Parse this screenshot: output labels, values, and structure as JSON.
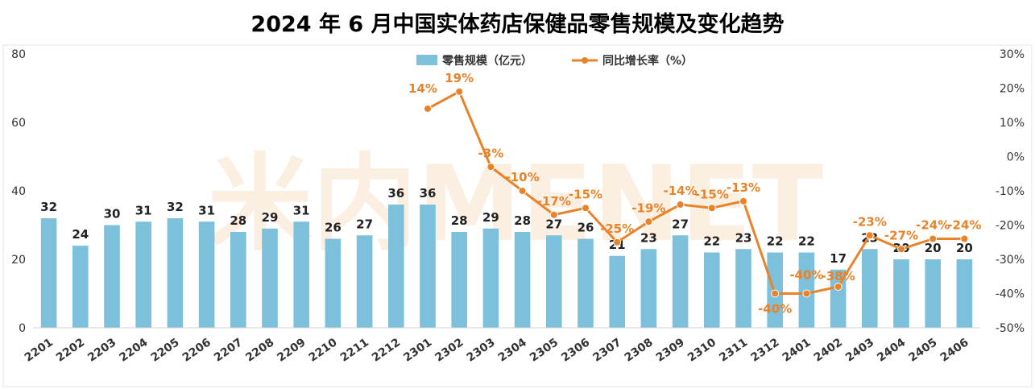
{
  "title": "2024 年 6 月中国实体药店保健品零售规模及变化趋势",
  "watermark": "米内MENET",
  "colors": {
    "bar": "#7cc0dc",
    "line": "#e8832a",
    "watermark": "#f8e2cc",
    "watermark2": "#e2eef3"
  },
  "chart_data": {
    "type": "bar+line",
    "categories": [
      "2201",
      "2202",
      "2203",
      "2204",
      "2205",
      "2206",
      "2207",
      "2208",
      "2209",
      "2210",
      "2211",
      "2212",
      "2301",
      "2302",
      "2303",
      "2304",
      "2305",
      "2306",
      "2307",
      "2308",
      "2309",
      "2310",
      "2311",
      "2312",
      "2401",
      "2402",
      "2403",
      "2404",
      "2405",
      "2406"
    ],
    "series": [
      {
        "name": "零售规模（亿元）",
        "type": "bar",
        "axis": "left",
        "values": [
          32,
          24,
          30,
          31,
          32,
          31,
          28,
          29,
          31,
          26,
          27,
          36,
          36,
          28,
          29,
          28,
          27,
          26,
          21,
          23,
          27,
          22,
          23,
          22,
          22,
          17,
          23,
          20,
          20,
          20
        ]
      },
      {
        "name": "同比增长率（%）",
        "type": "line",
        "axis": "right",
        "values": [
          null,
          null,
          null,
          null,
          null,
          null,
          null,
          null,
          null,
          null,
          null,
          null,
          14,
          19,
          -3,
          -10,
          -17,
          -15,
          -25,
          -19,
          -14,
          -15,
          -13,
          -40,
          -40,
          -38,
          -23,
          -27,
          -24,
          -24
        ],
        "labels": [
          null,
          null,
          null,
          null,
          null,
          null,
          null,
          null,
          null,
          null,
          null,
          null,
          "14%",
          "19%",
          "-3%",
          "-10%",
          "-17%",
          "-15%",
          "-25%",
          "-19%",
          "-14%",
          "-15%",
          "-13%",
          "-40%",
          "-40%",
          "-38%",
          "-23%",
          "-27%",
          "-24%",
          "-24%"
        ]
      }
    ],
    "y_left": {
      "min": 0,
      "max": 80,
      "ticks": [
        0,
        20,
        40,
        60,
        80
      ],
      "tick_labels": [
        "0",
        "20",
        "40",
        "60",
        "80"
      ]
    },
    "y_right": {
      "min": -50,
      "max": 30,
      "ticks": [
        -50,
        -40,
        -30,
        -20,
        -10,
        0,
        10,
        20,
        30
      ],
      "tick_labels": [
        "-50%",
        "-40%",
        "-30%",
        "-20%",
        "-10%",
        "0%",
        "10%",
        "20%",
        "30%"
      ]
    },
    "legend_position": "top-center",
    "grid": false
  }
}
